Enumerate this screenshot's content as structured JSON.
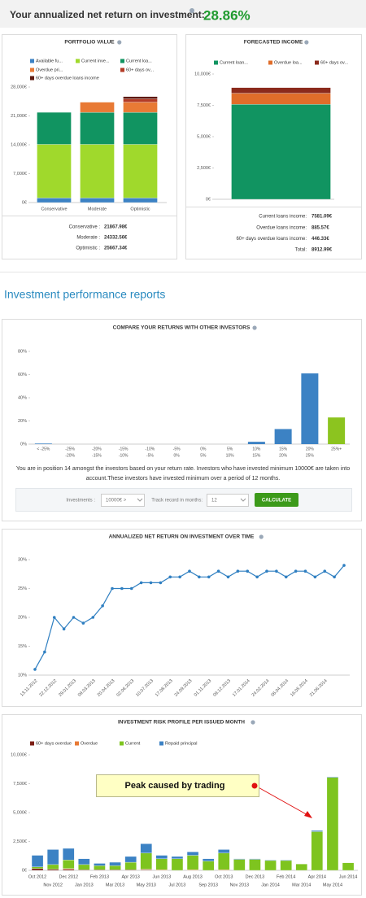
{
  "header": {
    "label": "Your annualized net return on investment:",
    "value": "28.86%"
  },
  "section_title": "Investment performance reports",
  "chart_data": [
    {
      "type": "stacked_bar",
      "title": "PORTFOLIO VALUE",
      "categories": [
        "Conservative",
        "Moderate",
        "Optimistic"
      ],
      "series": [
        {
          "name": "Available fu...",
          "color": "#3c82c4",
          "values": [
            1100,
            1100,
            1100
          ]
        },
        {
          "name": "Current inve...",
          "color": "#a0d92c",
          "values": [
            13000,
            13000,
            13000
          ]
        },
        {
          "name": "Current loa...",
          "color": "#119461",
          "values": [
            7768,
            7768,
            7768
          ]
        },
        {
          "name": "Overdue pri...",
          "color": "#e87a35",
          "values": [
            0,
            2465,
            2465
          ]
        },
        {
          "name": "60+ days ov...",
          "color": "#b33b26",
          "values": [
            0,
            0,
            800
          ]
        },
        {
          "name": "60+ days overdue loans income",
          "color": "#5e1a0f",
          "values": [
            0,
            0,
            535
          ]
        }
      ],
      "ylim": [
        0,
        28000
      ],
      "yticks": [
        {
          "value": 0,
          "label": "0€"
        },
        {
          "value": 7000,
          "label": "7,000€"
        },
        {
          "value": 14000,
          "label": "14,000€"
        },
        {
          "value": 21000,
          "label": "21,000€"
        },
        {
          "value": 28000,
          "label": "28,000€"
        }
      ],
      "summary": [
        {
          "label": "Conservative :",
          "value": "21867.98€"
        },
        {
          "label": "Moderate :",
          "value": "24332.56€"
        },
        {
          "label": "Optimistic :",
          "value": "25667.34€"
        }
      ]
    },
    {
      "type": "stacked_bar",
      "title": "FORECASTED INCOME",
      "categories": [
        null
      ],
      "series": [
        {
          "name": "Current loan...",
          "color": "#119461",
          "values": [
            7581.09
          ]
        },
        {
          "name": "Overdue loa...",
          "color": "#e06d2a",
          "values": [
            885.57
          ]
        },
        {
          "name": "60+ days ov...",
          "color": "#8b2a1c",
          "values": [
            446.33
          ]
        }
      ],
      "ylim": [
        0,
        10000
      ],
      "yticks": [
        {
          "value": 0,
          "label": "0€"
        },
        {
          "value": 2500,
          "label": "2,500€"
        },
        {
          "value": 5000,
          "label": "5,000€"
        },
        {
          "value": 7500,
          "label": "7,500€"
        },
        {
          "value": 10000,
          "label": "10,000€"
        }
      ],
      "summary": [
        {
          "label": "Current loans income:",
          "value": "7581.09€"
        },
        {
          "label": "Overdue loans income:",
          "value": "885.57€"
        },
        {
          "label": "60+ days overdue loans income:",
          "value": "446.33€"
        },
        {
          "label": "Total:",
          "value": "8912.99€"
        }
      ]
    },
    {
      "type": "bar",
      "title": "COMPARE YOUR RETURNS WITH OTHER INVESTORS",
      "categories": [
        [
          "< -25%"
        ],
        [
          "-25%",
          "-20%"
        ],
        [
          "-20%",
          "-15%"
        ],
        [
          "-15%",
          "-10%"
        ],
        [
          "-10%",
          "-5%"
        ],
        [
          "-5%",
          "0%"
        ],
        [
          "0%",
          "5%"
        ],
        [
          "5%",
          "10%"
        ],
        [
          "10%",
          "15%"
        ],
        [
          "15%",
          "20%"
        ],
        [
          "20%",
          "25%"
        ],
        [
          "25%+"
        ]
      ],
      "values": [
        0.5,
        0,
        0,
        0,
        0,
        0,
        0,
        0,
        2,
        13,
        61,
        23
      ],
      "colors": [
        "#3c82c4",
        "#3c82c4",
        "#3c82c4",
        "#3c82c4",
        "#3c82c4",
        "#3c82c4",
        "#3c82c4",
        "#3c82c4",
        "#3c82c4",
        "#3c82c4",
        "#3c82c4",
        "#8cc41f"
      ],
      "ylim": [
        0,
        80
      ],
      "yticks": [
        {
          "value": 0,
          "label": "0%"
        },
        {
          "value": 20,
          "label": "20%"
        },
        {
          "value": 40,
          "label": "40%"
        },
        {
          "value": 60,
          "label": "60%"
        },
        {
          "value": 80,
          "label": "80%"
        }
      ],
      "note": "You are in position 14 amongst the investors based on your return rate. Investors who have invested minimum 10000€ are taken into account.These investors have invested minimum over a period of 12 months.",
      "controls": {
        "investments_label": "Investments :",
        "investments_value": "10000€ >",
        "track_label": "Track record in months:",
        "track_value": "12",
        "button": "CALCULATE"
      }
    },
    {
      "type": "line",
      "title": "ANNUALIZED NET RETURN ON INVESTMENT OVER TIME",
      "categories": [
        "13.11.2012",
        null,
        "22.12.2012",
        null,
        "29.01.2013",
        null,
        "09.03.2013",
        null,
        "20.04.2013",
        null,
        "02.06.2013",
        null,
        "10.07.2013",
        null,
        "17.08.2013",
        null,
        "24.09.2013",
        null,
        "01.11.2013",
        null,
        "09.12.2013",
        null,
        "17.01.2014",
        null,
        "24.02.2014",
        null,
        "06.04.2014",
        null,
        "16.05.2014",
        null,
        "21.06.2014",
        null,
        null
      ],
      "values": [
        11,
        14,
        20,
        18,
        20,
        19,
        20,
        22,
        25,
        25,
        25,
        26,
        26,
        26,
        27,
        27,
        28,
        27,
        27,
        28,
        27,
        28,
        28,
        27,
        28,
        28,
        27,
        28,
        28,
        27,
        28,
        27,
        29
      ],
      "color": "#2f7fc1",
      "ylim": [
        10,
        30
      ],
      "yticks": [
        {
          "value": 10,
          "label": "10%"
        },
        {
          "value": 15,
          "label": "15%"
        },
        {
          "value": 20,
          "label": "20%"
        },
        {
          "value": 25,
          "label": "25%"
        },
        {
          "value": 30,
          "label": "30%"
        }
      ]
    },
    {
      "type": "stacked_bar",
      "title": "INVESTMENT RISK PROFILE PER ISSUED MONTH",
      "categories": [
        "Oct 2012",
        "Nov 2012",
        "Dec 2012",
        "Jan 2013",
        "Feb 2013",
        "Mar 2013",
        "Apr 2013",
        "May 2013",
        "Jun 2013",
        "Jul 2013",
        "Aug 2013",
        "Sep 2013",
        "Oct 2013",
        "Nov 2013",
        "Dec 2013",
        "Jan 2014",
        "Feb 2014",
        "Mar 2014",
        "Apr 2014",
        "May 2014",
        "Jun 2014"
      ],
      "series": [
        {
          "name": "60+ days overdue",
          "color": "#7c1e14",
          "values": [
            150,
            100,
            100,
            50,
            50,
            50,
            50,
            50,
            0,
            0,
            0,
            0,
            0,
            0,
            0,
            0,
            0,
            0,
            0,
            0,
            0
          ]
        },
        {
          "name": "Overdue",
          "color": "#e87a35",
          "values": [
            0,
            0,
            50,
            0,
            0,
            0,
            0,
            50,
            50,
            0,
            50,
            0,
            50,
            0,
            0,
            0,
            0,
            0,
            0,
            0,
            0
          ]
        },
        {
          "name": "Current",
          "color": "#7ec41f",
          "values": [
            150,
            400,
            750,
            450,
            350,
            350,
            650,
            1400,
            950,
            1000,
            1250,
            800,
            1450,
            950,
            950,
            850,
            850,
            550,
            3350,
            8050,
            650
          ]
        },
        {
          "name": "Repaid principal",
          "color": "#3c82c4",
          "values": [
            1000,
            1300,
            1000,
            500,
            200,
            300,
            500,
            800,
            300,
            200,
            300,
            200,
            300,
            50,
            50,
            50,
            50,
            0,
            100,
            50,
            0
          ]
        }
      ],
      "ylim": [
        0,
        10000
      ],
      "yticks": [
        {
          "value": 0,
          "label": "0€"
        },
        {
          "value": 2500,
          "label": "2,500€"
        },
        {
          "value": 5000,
          "label": "5,000€"
        },
        {
          "value": 7500,
          "label": "7,500€"
        },
        {
          "value": 10000,
          "label": "10,000€"
        }
      ],
      "annotation": "Peak caused by trading"
    }
  ]
}
